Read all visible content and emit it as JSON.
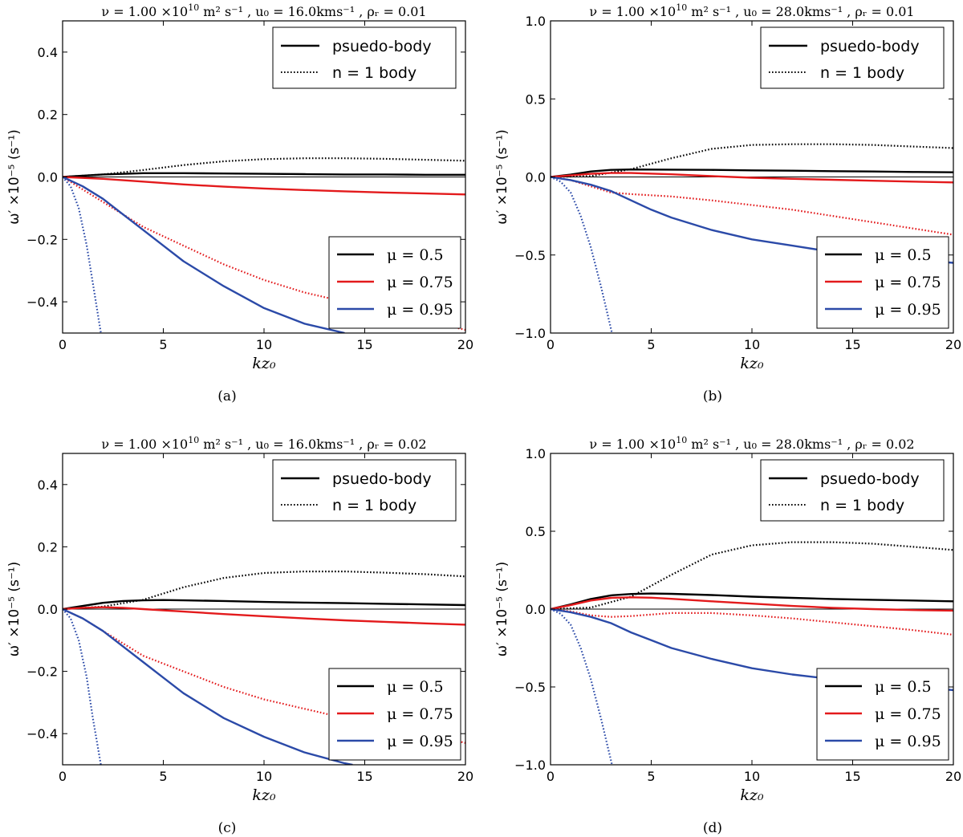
{
  "chart_data": [
    {
      "panel_label": "(a)",
      "type": "line",
      "title": {
        "nu_label": "ν = 1.00 ×10",
        "nu_exp": "10",
        "nu_units": "m² s⁻¹",
        "u0": "u₀ = 16.0kms⁻¹",
        "rho": "ρᵣ = 0.01"
      },
      "xlabel": "kz₀",
      "ylabel": "ω′ ×10⁻⁵ (s⁻¹)",
      "xlim": [
        0,
        20
      ],
      "ylim": [
        -0.5,
        0.5
      ],
      "xticks": [
        0,
        5,
        10,
        15,
        20
      ],
      "yticks": [
        -0.4,
        -0.2,
        0.0,
        0.2,
        0.4
      ],
      "ytick_labels": [
        "−0.4",
        "−0.2",
        "0.0",
        "0.2",
        "0.4"
      ],
      "style_legend": [
        {
          "label": "psuedo-body",
          "style": "solid"
        },
        {
          "label": "n = 1 body",
          "style": "dotted"
        }
      ],
      "mu_legend": [
        {
          "label": "μ = 0.5",
          "color": "#000000"
        },
        {
          "label": "μ = 0.75",
          "color": "#e31a1c"
        },
        {
          "label": "μ = 0.95",
          "color": "#2b4aa8"
        }
      ],
      "series": [
        {
          "name": "μ=0.5 psuedo-body",
          "color": "#000000",
          "style": "solid",
          "x": [
            0,
            2,
            4,
            6,
            8,
            10,
            12,
            14,
            16,
            18,
            20
          ],
          "y": [
            0.0,
            0.008,
            0.012,
            0.012,
            0.011,
            0.01,
            0.009,
            0.008,
            0.008,
            0.007,
            0.007
          ]
        },
        {
          "name": "μ=0.5 n=1 body",
          "color": "#000000",
          "style": "dotted",
          "x": [
            0,
            2,
            4,
            6,
            8,
            10,
            12,
            14,
            16,
            18,
            20
          ],
          "y": [
            0.0,
            0.008,
            0.022,
            0.038,
            0.05,
            0.057,
            0.06,
            0.06,
            0.058,
            0.055,
            0.052
          ]
        },
        {
          "name": "μ=0.75 psuedo-body",
          "color": "#e31a1c",
          "style": "solid",
          "x": [
            0,
            2,
            4,
            6,
            8,
            10,
            12,
            14,
            16,
            18,
            20
          ],
          "y": [
            0.0,
            -0.006,
            -0.015,
            -0.024,
            -0.031,
            -0.037,
            -0.042,
            -0.046,
            -0.05,
            -0.053,
            -0.056
          ]
        },
        {
          "name": "μ=0.75 n=1 body",
          "color": "#e31a1c",
          "style": "dotted",
          "x": [
            0,
            1,
            2,
            3,
            4,
            6,
            8,
            10,
            12,
            14,
            16,
            18,
            20
          ],
          "y": [
            0.0,
            -0.04,
            -0.08,
            -0.12,
            -0.16,
            -0.22,
            -0.28,
            -0.33,
            -0.37,
            -0.4,
            -0.43,
            -0.46,
            -0.49
          ]
        },
        {
          "name": "μ=0.95 psuedo-body",
          "color": "#2b4aa8",
          "style": "solid",
          "x": [
            0,
            1,
            2,
            3,
            4,
            5,
            6,
            8,
            10,
            12,
            14
          ],
          "y": [
            0.0,
            -0.03,
            -0.07,
            -0.12,
            -0.17,
            -0.22,
            -0.27,
            -0.35,
            -0.42,
            -0.47,
            -0.5
          ]
        },
        {
          "name": "μ=0.95 n=1 body",
          "color": "#2b4aa8",
          "style": "dotted",
          "x": [
            0,
            0.4,
            0.8,
            1.2,
            1.6,
            1.9
          ],
          "y": [
            0.0,
            -0.03,
            -0.1,
            -0.22,
            -0.38,
            -0.5
          ]
        }
      ]
    },
    {
      "panel_label": "(b)",
      "type": "line",
      "title": {
        "nu_label": "ν = 1.00 ×10",
        "nu_exp": "10",
        "nu_units": "m² s⁻¹",
        "u0": "u₀ = 28.0kms⁻¹",
        "rho": "ρᵣ = 0.01"
      },
      "xlabel": "kz₀",
      "ylabel": "ω′ ×10⁻⁵ (s⁻¹)",
      "xlim": [
        0,
        20
      ],
      "ylim": [
        -1.0,
        1.0
      ],
      "xticks": [
        0,
        5,
        10,
        15,
        20
      ],
      "yticks": [
        -1.0,
        -0.5,
        0.0,
        0.5,
        1.0
      ],
      "ytick_labels": [
        "−1.0",
        "−0.5",
        "0.0",
        "0.5",
        "1.0"
      ],
      "style_legend": [
        {
          "label": "psuedo-body",
          "style": "solid"
        },
        {
          "label": "n = 1 body",
          "style": "dotted"
        }
      ],
      "mu_legend": [
        {
          "label": "μ = 0.5",
          "color": "#000000"
        },
        {
          "label": "μ = 0.75",
          "color": "#e31a1c"
        },
        {
          "label": "μ = 0.95",
          "color": "#2b4aa8"
        }
      ],
      "series": [
        {
          "name": "μ=0.5 psuedo-body",
          "color": "#000000",
          "style": "solid",
          "x": [
            0,
            1,
            2,
            3,
            4,
            6,
            8,
            10,
            12,
            14,
            16,
            18,
            20
          ],
          "y": [
            0.0,
            0.015,
            0.035,
            0.045,
            0.048,
            0.047,
            0.045,
            0.042,
            0.04,
            0.037,
            0.035,
            0.032,
            0.03
          ]
        },
        {
          "name": "μ=0.5 n=1 body",
          "color": "#000000",
          "style": "dotted",
          "x": [
            0,
            2,
            4,
            6,
            8,
            10,
            12,
            14,
            16,
            18,
            20
          ],
          "y": [
            0.0,
            0.005,
            0.05,
            0.12,
            0.18,
            0.205,
            0.21,
            0.21,
            0.205,
            0.195,
            0.185
          ]
        },
        {
          "name": "μ=0.75 psuedo-body",
          "color": "#e31a1c",
          "style": "solid",
          "x": [
            0,
            1,
            2,
            3,
            4,
            6,
            8,
            10,
            12,
            14,
            16,
            18,
            20
          ],
          "y": [
            0.0,
            0.01,
            0.02,
            0.025,
            0.025,
            0.017,
            0.005,
            -0.005,
            -0.012,
            -0.018,
            -0.024,
            -0.03,
            -0.035
          ]
        },
        {
          "name": "μ=0.75 n=1 body",
          "color": "#e31a1c",
          "style": "dotted",
          "x": [
            0,
            1,
            2,
            3,
            4,
            6,
            8,
            10,
            12,
            14,
            16,
            18,
            20
          ],
          "y": [
            0.0,
            -0.02,
            -0.06,
            -0.1,
            -0.11,
            -0.125,
            -0.15,
            -0.18,
            -0.21,
            -0.25,
            -0.29,
            -0.33,
            -0.37
          ]
        },
        {
          "name": "μ=0.95 psuedo-body",
          "color": "#2b4aa8",
          "style": "solid",
          "x": [
            0,
            1,
            2,
            3,
            4,
            5,
            6,
            8,
            10,
            12,
            14,
            16,
            18,
            20
          ],
          "y": [
            0.0,
            -0.02,
            -0.05,
            -0.09,
            -0.15,
            -0.21,
            -0.26,
            -0.34,
            -0.4,
            -0.44,
            -0.48,
            -0.51,
            -0.53,
            -0.55
          ]
        },
        {
          "name": "μ=0.95 n=1 body",
          "color": "#2b4aa8",
          "style": "dotted",
          "x": [
            0,
            0.5,
            1,
            1.5,
            2,
            2.5,
            3.05
          ],
          "y": [
            0.0,
            -0.03,
            -0.1,
            -0.25,
            -0.45,
            -0.7,
            -1.0
          ]
        }
      ]
    },
    {
      "panel_label": "(c)",
      "type": "line",
      "title": {
        "nu_label": "ν = 1.00 ×10",
        "nu_exp": "10",
        "nu_units": "m² s⁻¹",
        "u0": "u₀ = 16.0kms⁻¹",
        "rho": "ρᵣ = 0.02"
      },
      "xlabel": "kz₀",
      "ylabel": "ω′ ×10⁻⁵ (s⁻¹)",
      "xlim": [
        0,
        20
      ],
      "ylim": [
        -0.5,
        0.5
      ],
      "xticks": [
        0,
        5,
        10,
        15,
        20
      ],
      "yticks": [
        -0.4,
        -0.2,
        0.0,
        0.2,
        0.4
      ],
      "ytick_labels": [
        "−0.4",
        "−0.2",
        "0.0",
        "0.2",
        "0.4"
      ],
      "style_legend": [
        {
          "label": "psuedo-body",
          "style": "solid"
        },
        {
          "label": "n = 1 body",
          "style": "dotted"
        }
      ],
      "mu_legend": [
        {
          "label": "μ = 0.5",
          "color": "#000000"
        },
        {
          "label": "μ = 0.75",
          "color": "#e31a1c"
        },
        {
          "label": "μ = 0.95",
          "color": "#2b4aa8"
        }
      ],
      "series": [
        {
          "name": "μ=0.5 psuedo-body",
          "color": "#000000",
          "style": "solid",
          "x": [
            0,
            1,
            2,
            3,
            4,
            5,
            6,
            8,
            10,
            12,
            14,
            16,
            18,
            20
          ],
          "y": [
            0.0,
            0.01,
            0.02,
            0.026,
            0.028,
            0.029,
            0.028,
            0.026,
            0.023,
            0.021,
            0.019,
            0.017,
            0.015,
            0.013
          ]
        },
        {
          "name": "μ=0.5 n=1 body",
          "color": "#000000",
          "style": "dotted",
          "x": [
            0,
            2,
            4,
            6,
            8,
            10,
            12,
            14,
            16,
            18,
            20
          ],
          "y": [
            0.0,
            0.008,
            0.03,
            0.07,
            0.1,
            0.116,
            0.121,
            0.121,
            0.117,
            0.112,
            0.105
          ]
        },
        {
          "name": "μ=0.75 psuedo-body",
          "color": "#e31a1c",
          "style": "solid",
          "x": [
            0,
            1,
            2,
            3,
            4,
            6,
            8,
            10,
            12,
            14,
            16,
            18,
            20
          ],
          "y": [
            0.0,
            0.004,
            0.006,
            0.004,
            0.0,
            -0.008,
            -0.016,
            -0.023,
            -0.03,
            -0.036,
            -0.041,
            -0.046,
            -0.05
          ]
        },
        {
          "name": "μ=0.75 n=1 body",
          "color": "#e31a1c",
          "style": "dotted",
          "x": [
            0,
            1,
            2,
            3,
            4,
            6,
            8,
            10,
            12,
            14,
            16,
            18,
            20
          ],
          "y": [
            0.0,
            -0.03,
            -0.07,
            -0.11,
            -0.15,
            -0.2,
            -0.25,
            -0.29,
            -0.32,
            -0.35,
            -0.38,
            -0.4,
            -0.43
          ]
        },
        {
          "name": "μ=0.95 psuedo-body",
          "color": "#2b4aa8",
          "style": "solid",
          "x": [
            0,
            1,
            2,
            3,
            4,
            5,
            6,
            8,
            10,
            12,
            14,
            14.4
          ],
          "y": [
            0.0,
            -0.03,
            -0.07,
            -0.12,
            -0.17,
            -0.22,
            -0.27,
            -0.35,
            -0.41,
            -0.46,
            -0.495,
            -0.5
          ]
        },
        {
          "name": "μ=0.95 n=1 body",
          "color": "#2b4aa8",
          "style": "dotted",
          "x": [
            0,
            0.4,
            0.8,
            1.2,
            1.5,
            1.9
          ],
          "y": [
            0.0,
            -0.03,
            -0.1,
            -0.22,
            -0.35,
            -0.5
          ]
        }
      ]
    },
    {
      "panel_label": "(d)",
      "type": "line",
      "title": {
        "nu_label": "ν = 1.00 ×10",
        "nu_exp": "10",
        "nu_units": "m² s⁻¹",
        "u0": "u₀ = 28.0kms⁻¹",
        "rho": "ρᵣ = 0.02"
      },
      "xlabel": "kz₀",
      "ylabel": "ω′ ×10⁻⁵ (s⁻¹)",
      "xlim": [
        0,
        20
      ],
      "ylim": [
        -1.0,
        1.0
      ],
      "xticks": [
        0,
        5,
        10,
        15,
        20
      ],
      "yticks": [
        -1.0,
        -0.5,
        0.0,
        0.5,
        1.0
      ],
      "ytick_labels": [
        "−1.0",
        "−0.5",
        "0.0",
        "0.5",
        "1.0"
      ],
      "style_legend": [
        {
          "label": "psuedo-body",
          "style": "solid"
        },
        {
          "label": "n = 1 body",
          "style": "dotted"
        }
      ],
      "mu_legend": [
        {
          "label": "μ = 0.5",
          "color": "#000000"
        },
        {
          "label": "μ = 0.75",
          "color": "#e31a1c"
        },
        {
          "label": "μ = 0.95",
          "color": "#2b4aa8"
        }
      ],
      "series": [
        {
          "name": "μ=0.5 psuedo-body",
          "color": "#000000",
          "style": "solid",
          "x": [
            0,
            1,
            2,
            3,
            4,
            5,
            6,
            8,
            10,
            12,
            14,
            16,
            18,
            20
          ],
          "y": [
            0.0,
            0.03,
            0.065,
            0.088,
            0.097,
            0.1,
            0.098,
            0.09,
            0.08,
            0.072,
            0.065,
            0.06,
            0.055,
            0.05
          ]
        },
        {
          "name": "μ=0.5 n=1 body",
          "color": "#000000",
          "style": "dotted",
          "x": [
            0,
            2,
            4,
            6,
            8,
            10,
            12,
            14,
            16,
            18,
            20
          ],
          "y": [
            0.0,
            0.01,
            0.08,
            0.22,
            0.35,
            0.41,
            0.43,
            0.43,
            0.42,
            0.4,
            0.38
          ]
        },
        {
          "name": "μ=0.75 psuedo-body",
          "color": "#e31a1c",
          "style": "solid",
          "x": [
            0,
            1,
            2,
            3,
            4,
            5,
            6,
            8,
            10,
            12,
            14,
            16,
            18,
            20
          ],
          "y": [
            0.0,
            0.025,
            0.055,
            0.072,
            0.076,
            0.073,
            0.066,
            0.05,
            0.035,
            0.02,
            0.008,
            0.0,
            -0.006,
            -0.01
          ]
        },
        {
          "name": "μ=0.75 n=1 body",
          "color": "#e31a1c",
          "style": "dotted",
          "x": [
            0,
            1,
            2,
            3,
            4,
            6,
            8,
            10,
            12,
            14,
            16,
            18,
            20
          ],
          "y": [
            0.0,
            -0.015,
            -0.04,
            -0.05,
            -0.045,
            -0.025,
            -0.025,
            -0.04,
            -0.06,
            -0.085,
            -0.11,
            -0.135,
            -0.165
          ]
        },
        {
          "name": "μ=0.95 psuedo-body",
          "color": "#2b4aa8",
          "style": "solid",
          "x": [
            0,
            1,
            2,
            3,
            4,
            5,
            6,
            8,
            10,
            12,
            14,
            16,
            18,
            20
          ],
          "y": [
            0.0,
            -0.02,
            -0.05,
            -0.09,
            -0.15,
            -0.2,
            -0.25,
            -0.32,
            -0.38,
            -0.42,
            -0.45,
            -0.48,
            -0.5,
            -0.52
          ]
        },
        {
          "name": "μ=0.95 n=1 body",
          "color": "#2b4aa8",
          "style": "dotted",
          "x": [
            0,
            0.5,
            1,
            1.5,
            2,
            2.5,
            3.05
          ],
          "y": [
            0.0,
            -0.03,
            -0.1,
            -0.25,
            -0.45,
            -0.7,
            -1.0
          ]
        }
      ]
    }
  ]
}
